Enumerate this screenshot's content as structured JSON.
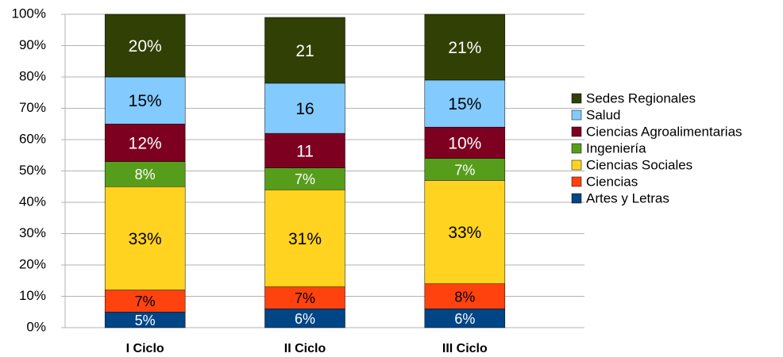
{
  "chart_data": {
    "type": "stacked_bar",
    "categories": [
      "I Ciclo",
      "II Ciclo",
      "III Ciclo"
    ],
    "series": [
      {
        "name": "Artes y Letras",
        "color": "#004586",
        "values": [
          5,
          6,
          6
        ],
        "value_labels": [
          "5%",
          "6%",
          "6%"
        ]
      },
      {
        "name": "Ciencias",
        "color": "#ff420e",
        "values": [
          7,
          7,
          8
        ],
        "value_labels": [
          "7%",
          "7%",
          "8%"
        ]
      },
      {
        "name": "Ciencias Sociales",
        "color": "#ffd320",
        "values": [
          33,
          31,
          33
        ],
        "value_labels": [
          "33%",
          "31%",
          "33%"
        ]
      },
      {
        "name": "Ingeniería",
        "color": "#579d1c",
        "values": [
          8,
          7,
          7
        ],
        "value_labels": [
          "8%",
          "7%",
          "7%"
        ]
      },
      {
        "name": "Ciencias Agroalimentarias",
        "color": "#7e0021",
        "values": [
          12,
          11,
          10
        ],
        "value_labels": [
          "12%",
          "11",
          "10%"
        ]
      },
      {
        "name": "Salud",
        "color": "#83caff",
        "values": [
          15,
          16,
          15
        ],
        "value_labels": [
          "15%",
          "16",
          "15%"
        ]
      },
      {
        "name": "Sedes Regionales",
        "color": "#314004",
        "values": [
          20,
          21,
          21
        ],
        "value_labels": [
          "20%",
          "21",
          "21%"
        ]
      }
    ],
    "ylim": [
      0,
      100
    ],
    "yticks": [
      {
        "value": 0,
        "label": "0%"
      },
      {
        "value": 10,
        "label": "10%"
      },
      {
        "value": 20,
        "label": "20%"
      },
      {
        "value": 30,
        "label": "30%"
      },
      {
        "value": 40,
        "label": "40%"
      },
      {
        "value": 50,
        "label": "50%"
      },
      {
        "value": 60,
        "label": "60%"
      },
      {
        "value": 70,
        "label": "70%"
      },
      {
        "value": 80,
        "label": "80%"
      },
      {
        "value": 90,
        "label": "90%"
      },
      {
        "value": 100,
        "label": "100%"
      }
    ],
    "grid": true,
    "legend": "right"
  }
}
